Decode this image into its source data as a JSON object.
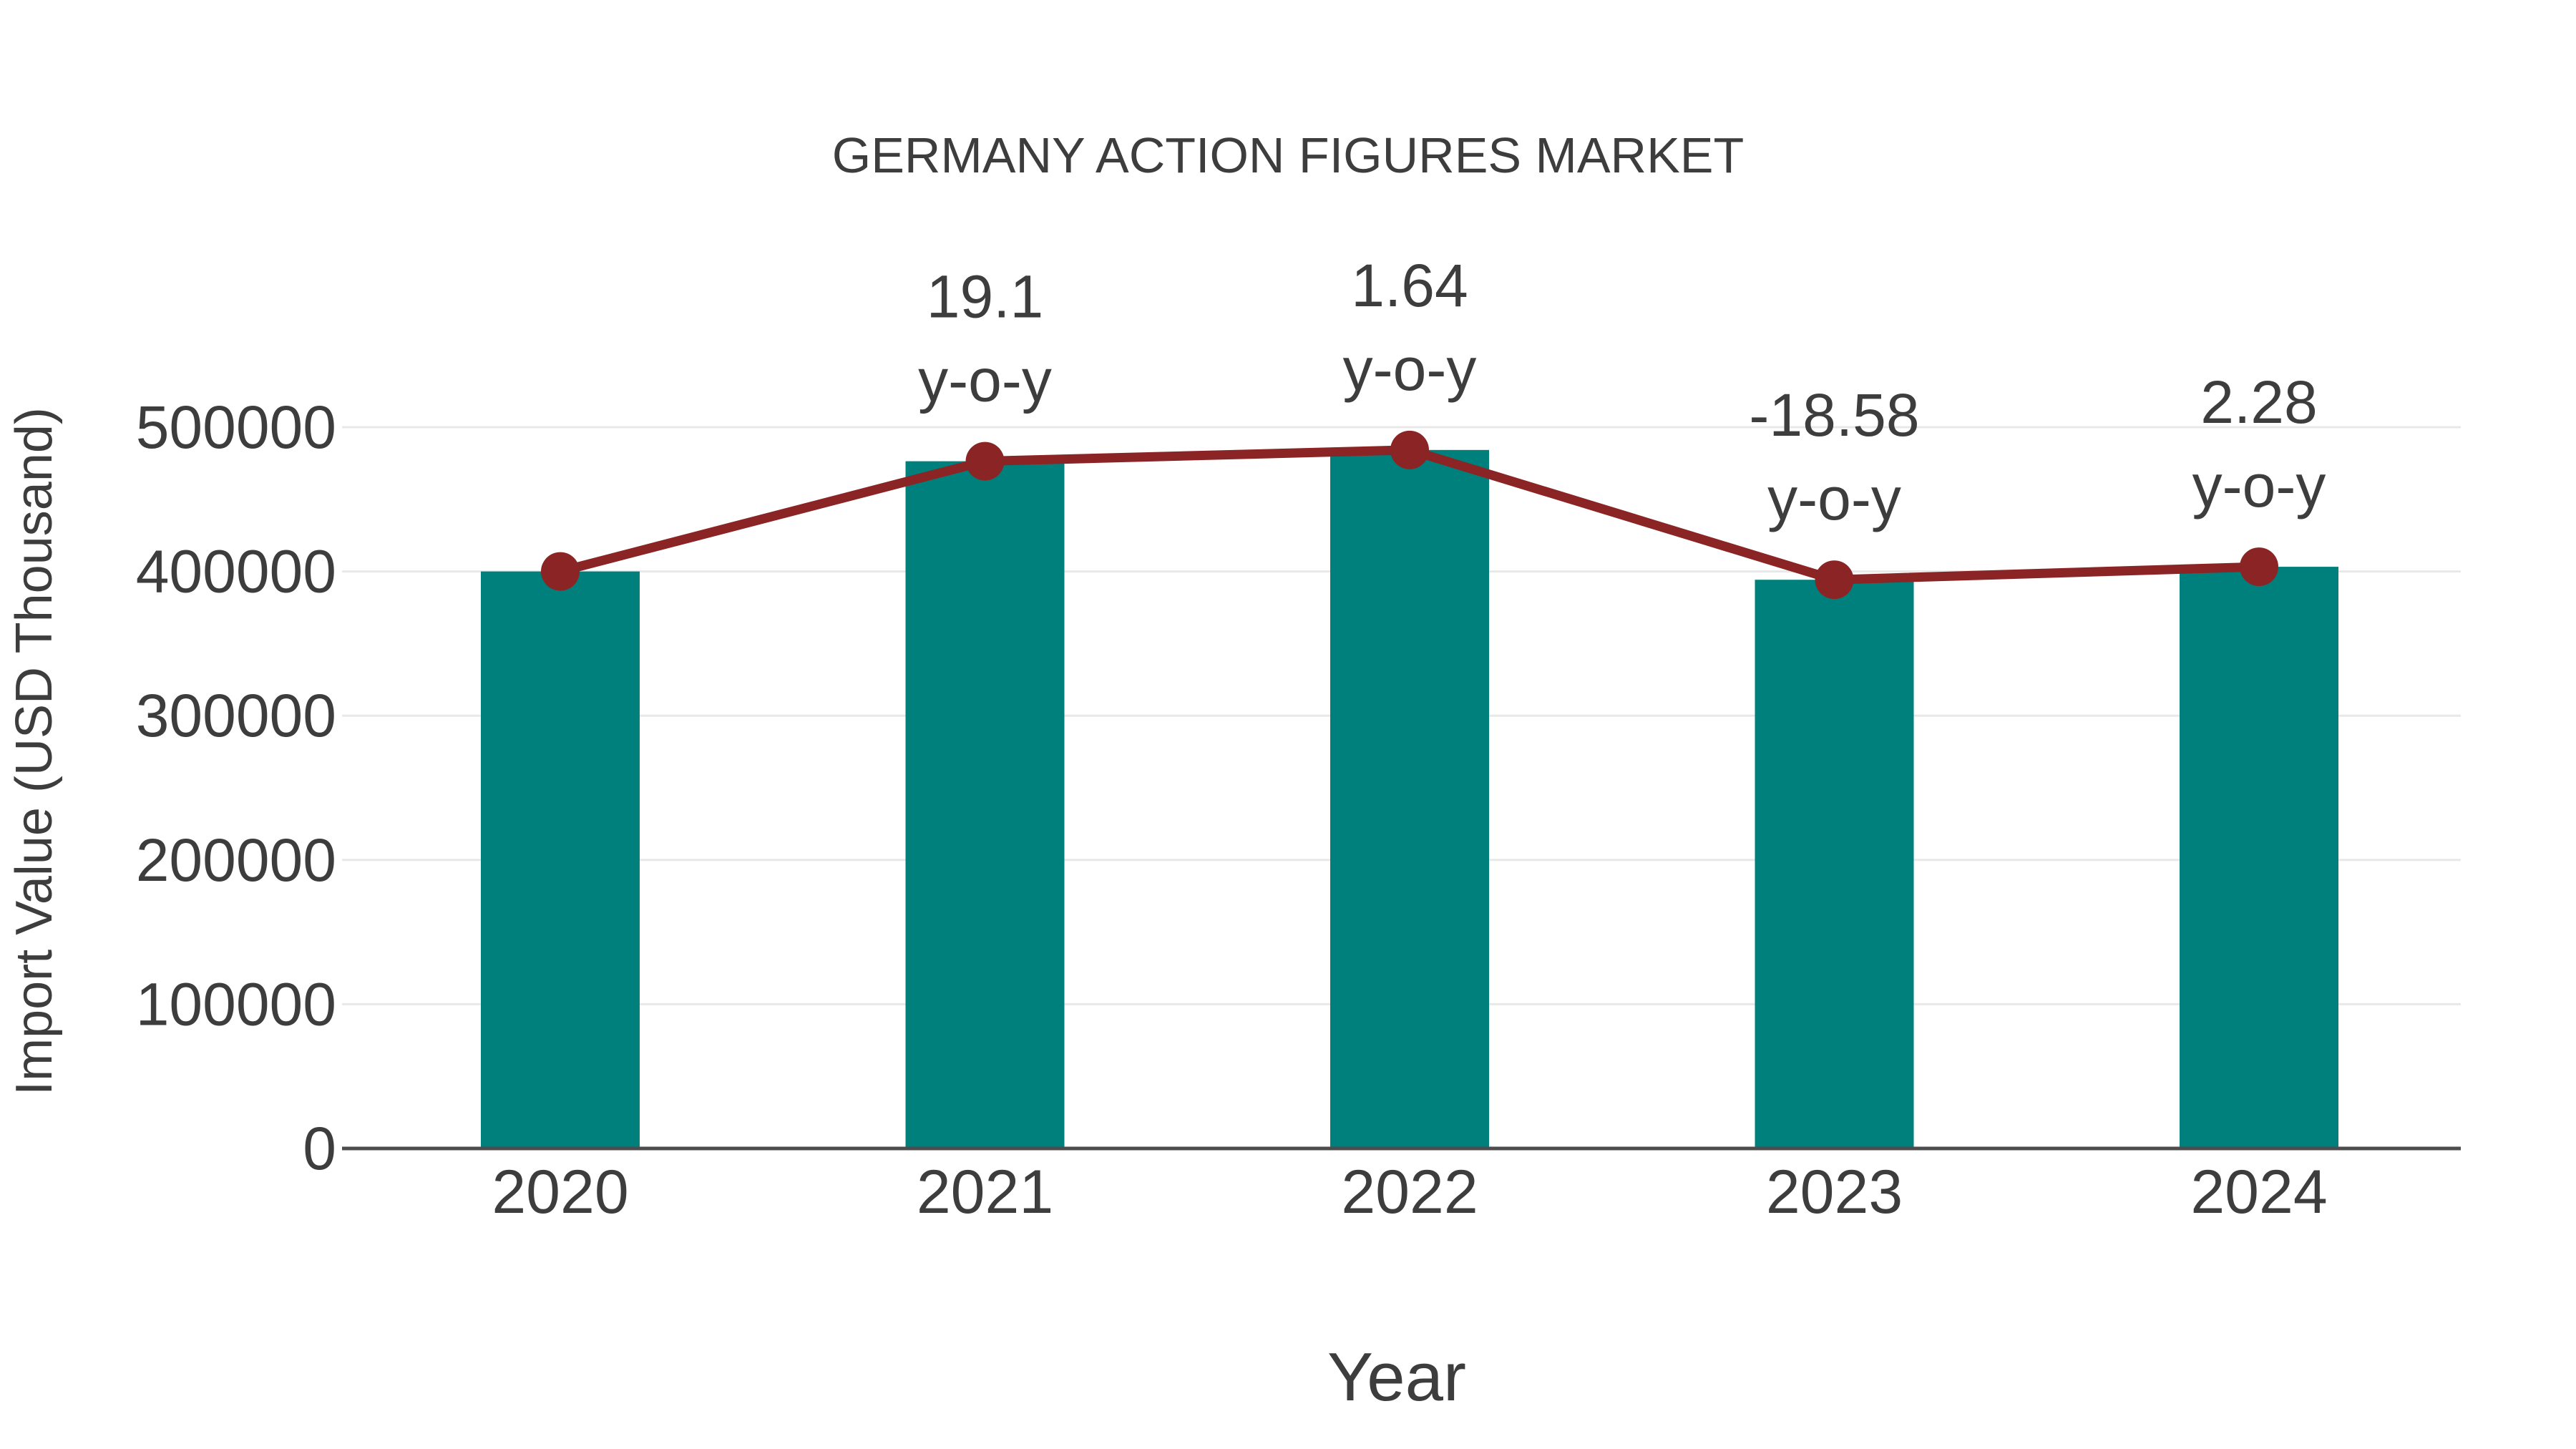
{
  "title": "GERMANY ACTION FIGURES MARKET",
  "chart_data": {
    "type": "bar+line",
    "title": "GERMANY ACTION FIGURES MARKET",
    "xlabel": "Year",
    "ylabel": "Import Value (USD Thousand)",
    "categories": [
      "2020",
      "2021",
      "2022",
      "2023",
      "2024"
    ],
    "series": [
      {
        "name": "Import Value bars",
        "type": "bar",
        "values": [
          400000,
          476400,
          484213,
          394244,
          403233
        ]
      },
      {
        "name": "Import Value trend line",
        "type": "line",
        "values": [
          400000,
          476400,
          484213,
          394244,
          403233
        ]
      }
    ],
    "annotations": [
      {
        "category": "2021",
        "value": "19.1",
        "suffix": "y-o-y"
      },
      {
        "category": "2022",
        "value": "1.64",
        "suffix": "y-o-y"
      },
      {
        "category": "2023",
        "value": "-18.58",
        "suffix": "y-o-y"
      },
      {
        "category": "2024",
        "value": "2.28",
        "suffix": "y-o-y"
      }
    ],
    "ylim": [
      0,
      500000
    ],
    "yticks": [
      0,
      100000,
      200000,
      300000,
      400000,
      500000
    ],
    "ytick_labels": [
      "0",
      "100000",
      "200000",
      "300000",
      "400000",
      "500000"
    ],
    "grid": true,
    "legend_position": "none"
  },
  "colors": {
    "bar": "#00807D",
    "line": "#8B2424",
    "marker": "#8B2424",
    "grid": "#E8E8E8",
    "axis": "#4D4D4D",
    "text": "#3D3D3D",
    "background": "#FFFFFF"
  }
}
